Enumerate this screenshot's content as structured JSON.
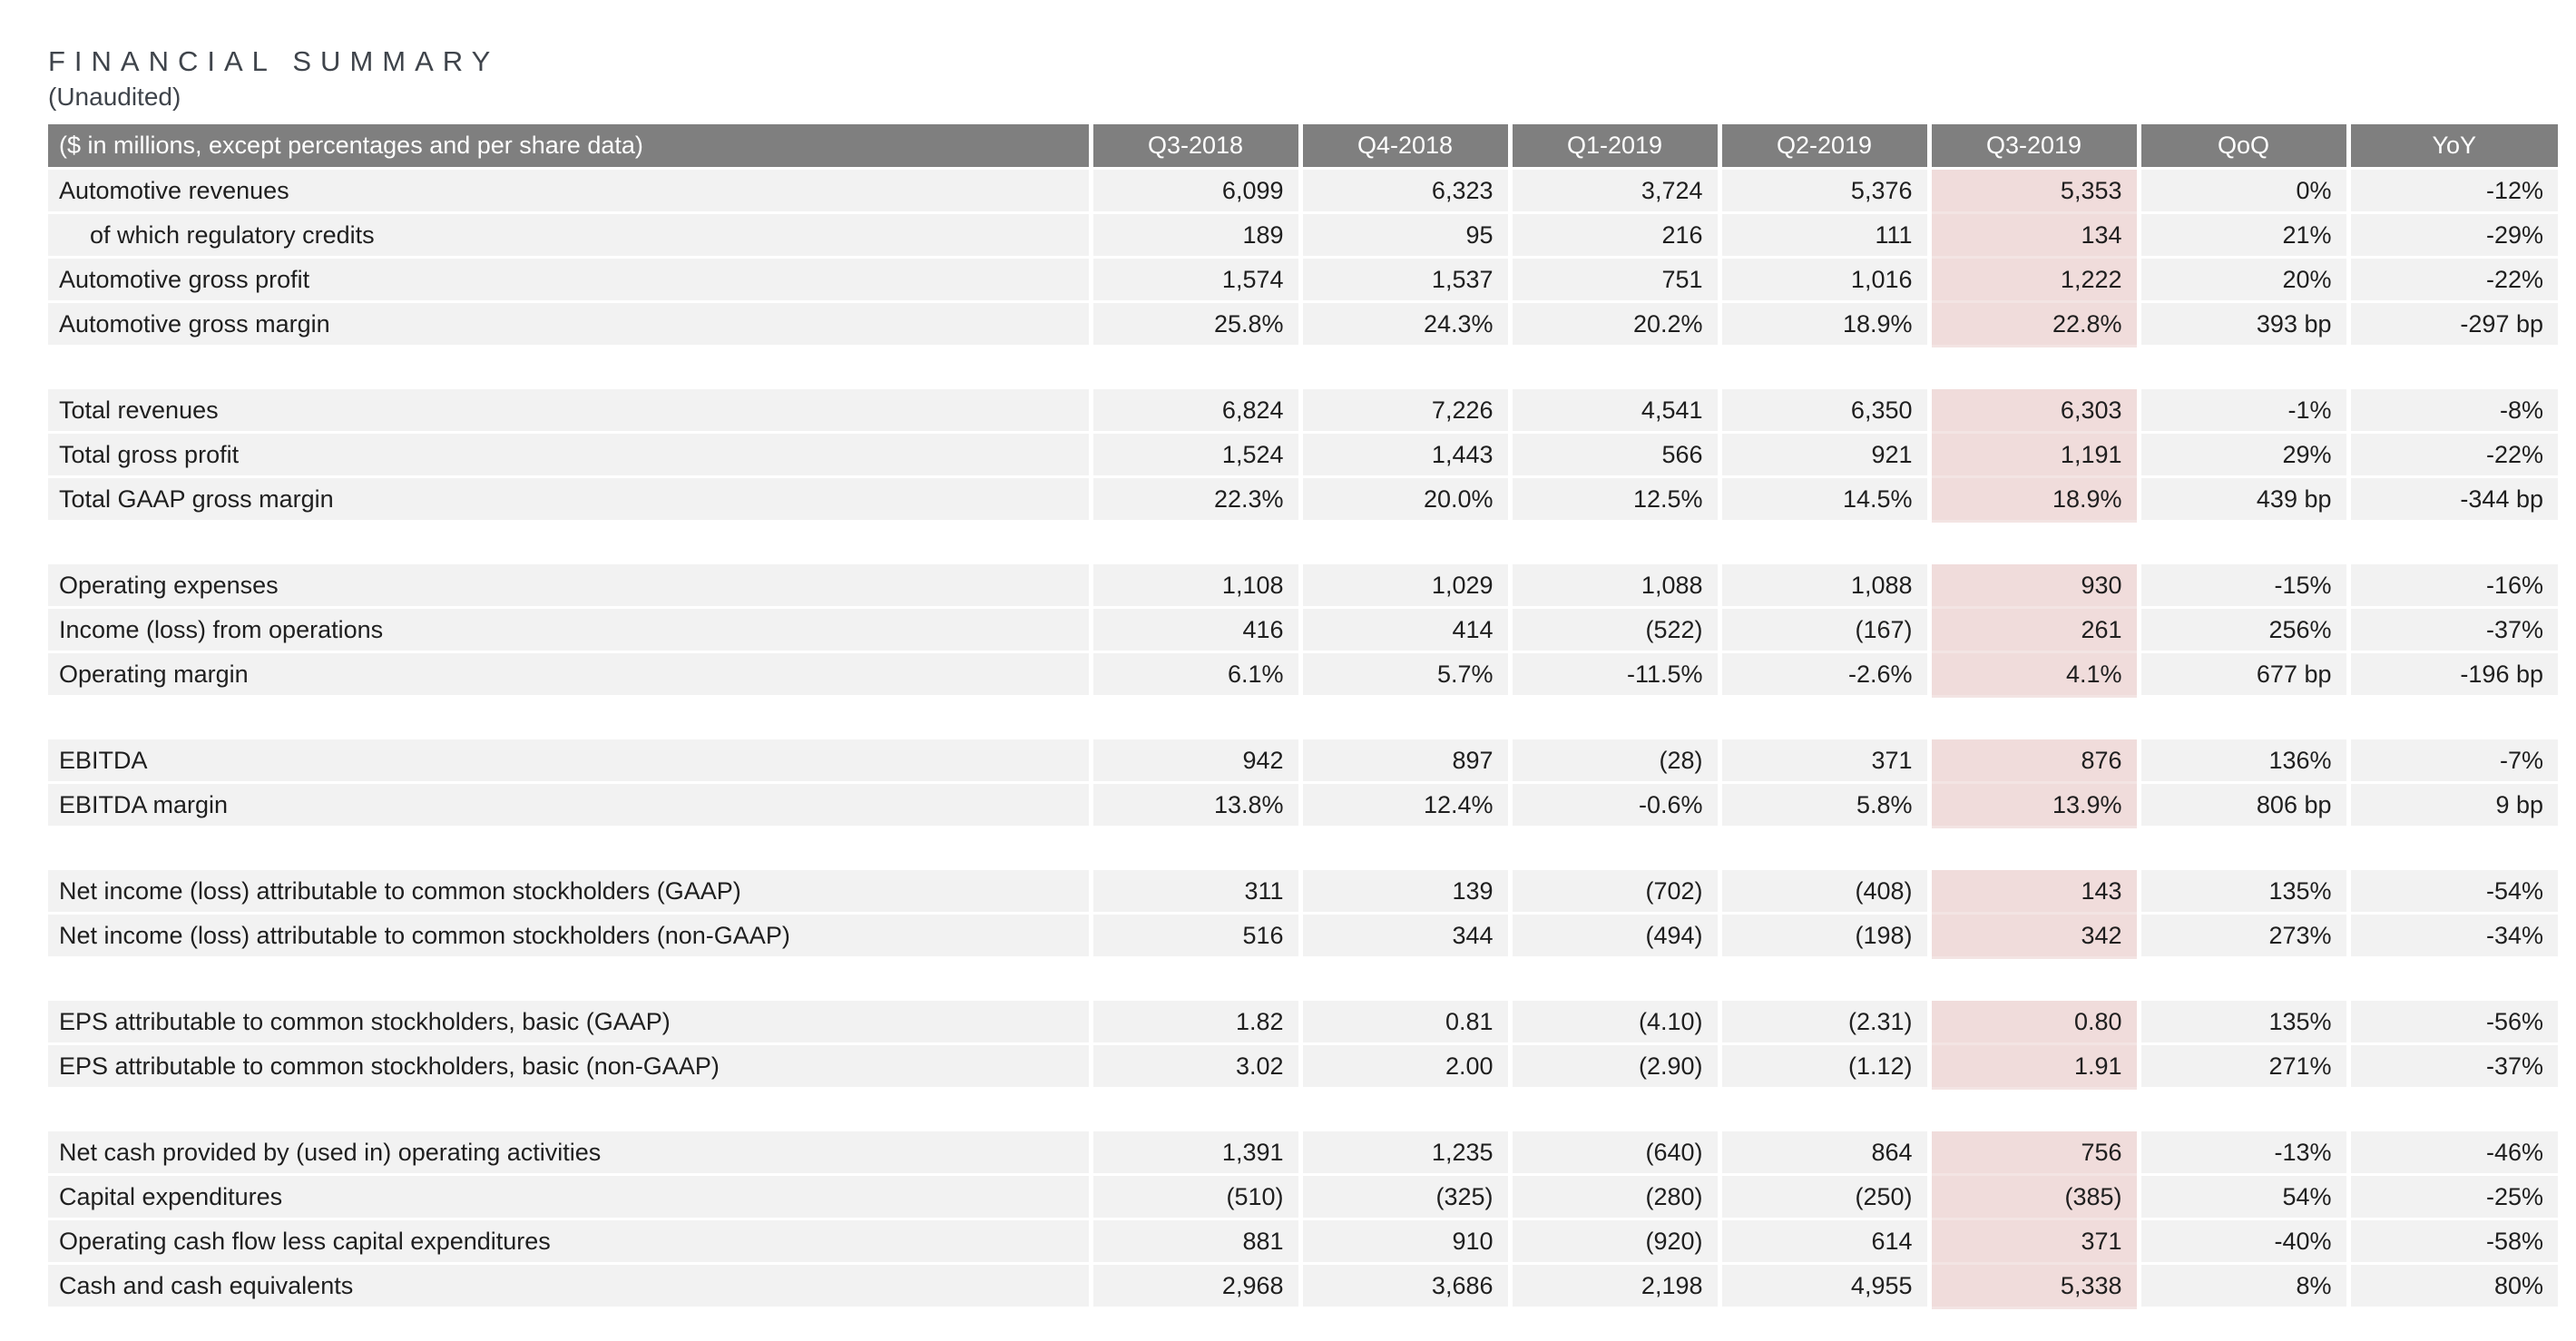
{
  "title": "FINANCIAL SUMMARY",
  "subtitle": "(Unaudited)",
  "colors": {
    "header_bg": "#7f7f7f",
    "header_text": "#ffffff",
    "row_bg": "#f2f2f2",
    "highlight_bg": "#f0dcdb",
    "body_text": "#1f1f1f",
    "title_text": "#3f444b"
  },
  "table": {
    "header": [
      "($ in millions, except percentages and per share data)",
      "Q3-2018",
      "Q4-2018",
      "Q1-2019",
      "Q2-2019",
      "Q3-2019",
      "QoQ",
      "YoY"
    ],
    "highlight_column": "Q3-2019",
    "rows": [
      {
        "type": "data",
        "indent": false,
        "label": "Automotive revenues",
        "values": [
          "6,099",
          "6,323",
          "3,724",
          "5,376",
          "5,353",
          "0%",
          "-12%"
        ]
      },
      {
        "type": "data",
        "indent": true,
        "label": "of which regulatory credits",
        "values": [
          "189",
          "95",
          "216",
          "111",
          "134",
          "21%",
          "-29%"
        ]
      },
      {
        "type": "data",
        "indent": false,
        "label": "Automotive gross profit",
        "values": [
          "1,574",
          "1,537",
          "751",
          "1,016",
          "1,222",
          "20%",
          "-22%"
        ]
      },
      {
        "type": "data",
        "indent": false,
        "label": "Automotive gross margin",
        "values": [
          "25.8%",
          "24.3%",
          "20.2%",
          "18.9%",
          "22.8%",
          "393 bp",
          "-297 bp"
        ]
      },
      {
        "type": "spacer"
      },
      {
        "type": "data",
        "indent": false,
        "label": "Total revenues",
        "values": [
          "6,824",
          "7,226",
          "4,541",
          "6,350",
          "6,303",
          "-1%",
          "-8%"
        ]
      },
      {
        "type": "data",
        "indent": false,
        "label": "Total gross profit",
        "values": [
          "1,524",
          "1,443",
          "566",
          "921",
          "1,191",
          "29%",
          "-22%"
        ]
      },
      {
        "type": "data",
        "indent": false,
        "label": "Total GAAP gross margin",
        "values": [
          "22.3%",
          "20.0%",
          "12.5%",
          "14.5%",
          "18.9%",
          "439 bp",
          "-344 bp"
        ]
      },
      {
        "type": "spacer"
      },
      {
        "type": "data",
        "indent": false,
        "label": "Operating expenses",
        "values": [
          "1,108",
          "1,029",
          "1,088",
          "1,088",
          "930",
          "-15%",
          "-16%"
        ]
      },
      {
        "type": "data",
        "indent": false,
        "label": "Income (loss) from operations",
        "values": [
          "416",
          "414",
          "(522)",
          "(167)",
          "261",
          "256%",
          "-37%"
        ]
      },
      {
        "type": "data",
        "indent": false,
        "label": "Operating margin",
        "values": [
          "6.1%",
          "5.7%",
          "-11.5%",
          "-2.6%",
          "4.1%",
          "677 bp",
          "-196 bp"
        ]
      },
      {
        "type": "spacer"
      },
      {
        "type": "data",
        "indent": false,
        "label": "EBITDA",
        "values": [
          "942",
          "897",
          "(28)",
          "371",
          "876",
          "136%",
          "-7%"
        ]
      },
      {
        "type": "data",
        "indent": false,
        "label": "EBITDA margin",
        "values": [
          "13.8%",
          "12.4%",
          "-0.6%",
          "5.8%",
          "13.9%",
          "806 bp",
          "9 bp"
        ]
      },
      {
        "type": "spacer"
      },
      {
        "type": "data",
        "indent": false,
        "label": "Net income (loss) attributable to common stockholders (GAAP)",
        "values": [
          "311",
          "139",
          "(702)",
          "(408)",
          "143",
          "135%",
          "-54%"
        ]
      },
      {
        "type": "data",
        "indent": false,
        "label": "Net income (loss) attributable to common stockholders (non-GAAP)",
        "values": [
          "516",
          "344",
          "(494)",
          "(198)",
          "342",
          "273%",
          "-34%"
        ]
      },
      {
        "type": "spacer"
      },
      {
        "type": "data",
        "indent": false,
        "label": "EPS attributable to common stockholders, basic (GAAP)",
        "values": [
          "1.82",
          "0.81",
          "(4.10)",
          "(2.31)",
          "0.80",
          "135%",
          "-56%"
        ]
      },
      {
        "type": "data",
        "indent": false,
        "label": "EPS attributable to common stockholders, basic (non-GAAP)",
        "values": [
          "3.02",
          "2.00",
          "(2.90)",
          "(1.12)",
          "1.91",
          "271%",
          "-37%"
        ]
      },
      {
        "type": "spacer"
      },
      {
        "type": "data",
        "indent": false,
        "label": "Net cash provided by (used in) operating activities",
        "values": [
          "1,391",
          "1,235",
          "(640)",
          "864",
          "756",
          "-13%",
          "-46%"
        ]
      },
      {
        "type": "data",
        "indent": false,
        "label": "Capital expenditures",
        "values": [
          "(510)",
          "(325)",
          "(280)",
          "(250)",
          "(385)",
          "54%",
          "-25%"
        ]
      },
      {
        "type": "data",
        "indent": false,
        "label": "Operating cash flow less capital expenditures",
        "values": [
          "881",
          "910",
          "(920)",
          "614",
          "371",
          "-40%",
          "-58%"
        ]
      },
      {
        "type": "data",
        "indent": false,
        "label": "Cash and cash equivalents",
        "values": [
          "2,968",
          "3,686",
          "2,198",
          "4,955",
          "5,338",
          "8%",
          "80%"
        ]
      }
    ]
  }
}
